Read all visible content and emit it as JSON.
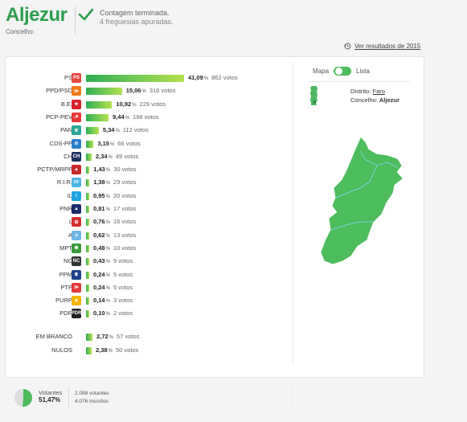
{
  "header": {
    "title": "Aljezur",
    "subtitle": "Concelho:",
    "status_line1": "Contagem terminada.",
    "status_line2": "4 freguesias apuradas."
  },
  "prev_results_link": "Ver resultados de 2015",
  "toggle": {
    "left": "Mapa",
    "right": "Lista",
    "state": "Mapa"
  },
  "location": {
    "district_label": "Distrito:",
    "district": "Faro",
    "council_label": "Concelho:",
    "council": "Aljezur"
  },
  "accent": "#2e9d4e",
  "pct_symbol": "%",
  "results": [
    {
      "party": "PS",
      "pct": "41,09",
      "votes": "862 votos",
      "value": 41.09,
      "logo_color": "#e8453c",
      "logo_text": "PS"
    },
    {
      "party": "PPD/PSD",
      "pct": "15,06",
      "votes": "316 votos",
      "value": 15.06,
      "logo_color": "#f07a1a",
      "logo_text": "≫"
    },
    {
      "party": "B.E.",
      "pct": "10,92",
      "votes": "229 votos",
      "value": 10.92,
      "logo_color": "#d8232a",
      "logo_text": "★"
    },
    {
      "party": "PCP-PEV",
      "pct": "9,44",
      "votes": "198 votos",
      "value": 9.44,
      "logo_color": "#e53935",
      "logo_text": "☭"
    },
    {
      "party": "PAN",
      "pct": "5,34",
      "votes": "112 votos",
      "value": 5.34,
      "logo_color": "#2aa59a",
      "logo_text": "❦"
    },
    {
      "party": "CDS-PP",
      "pct": "3,15",
      "votes": "66 votos",
      "value": 3.15,
      "logo_color": "#2a7fc9",
      "logo_text": "⊘"
    },
    {
      "party": "CH",
      "pct": "2,34",
      "votes": "49 votos",
      "value": 2.34,
      "logo_color": "#1c2f5c",
      "logo_text": "CH"
    },
    {
      "party": "PCTP/MRPP",
      "pct": "1,43",
      "votes": "30 votos",
      "value": 1.43,
      "logo_color": "#c62828",
      "logo_text": "✦"
    },
    {
      "party": "R.I.R.",
      "pct": "1,38",
      "votes": "29 votos",
      "value": 1.38,
      "logo_color": "#4db6e5",
      "logo_text": "rir"
    },
    {
      "party": "IL",
      "pct": "0,95",
      "votes": "20 votos",
      "value": 0.95,
      "logo_color": "#1fa3e0",
      "logo_text": "i"
    },
    {
      "party": "PNR",
      "pct": "0,81",
      "votes": "17 votos",
      "value": 0.81,
      "logo_color": "#1b2a6b",
      "logo_text": "▲"
    },
    {
      "party": "L",
      "pct": "0,76",
      "votes": "16 votos",
      "value": 0.76,
      "logo_color": "#d32f2f",
      "logo_text": "✿"
    },
    {
      "party": "A",
      "pct": "0,62",
      "votes": "13 votos",
      "value": 0.62,
      "logo_color": "#6fb7e8",
      "logo_text": "a"
    },
    {
      "party": "MPT",
      "pct": "0,48",
      "votes": "10 votos",
      "value": 0.48,
      "logo_color": "#3a9a3a",
      "logo_text": "✽"
    },
    {
      "party": "NC",
      "pct": "0,43",
      "votes": "9 votos",
      "value": 0.43,
      "logo_color": "#333333",
      "logo_text": "NC"
    },
    {
      "party": "PPM",
      "pct": "0,24",
      "votes": "5 votos",
      "value": 0.24,
      "logo_color": "#1e3f8a",
      "logo_text": "♛"
    },
    {
      "party": "PTP",
      "pct": "0,24",
      "votes": "5 votos",
      "value": 0.24,
      "logo_color": "#e53935",
      "logo_text": "≫"
    },
    {
      "party": "PURP",
      "pct": "0,14",
      "votes": "3 votos",
      "value": 0.14,
      "logo_color": "#f4b400",
      "logo_text": "☀"
    },
    {
      "party": "PDR",
      "pct": "0,10",
      "votes": "2 votos",
      "value": 0.1,
      "logo_color": "#222222",
      "logo_text": "PDR"
    }
  ],
  "extra_results": [
    {
      "party": "EM BRANCO",
      "pct": "2,72",
      "votes": "57 votos",
      "value": 2.72
    },
    {
      "party": "NULOS",
      "pct": "2,38",
      "votes": "50 votos",
      "value": 2.38
    }
  ],
  "turnout": {
    "label": "Votantes",
    "pct": "51,47%",
    "value": 51.47,
    "voters": "2.098 votantes",
    "registered": "4.076 inscritos"
  }
}
